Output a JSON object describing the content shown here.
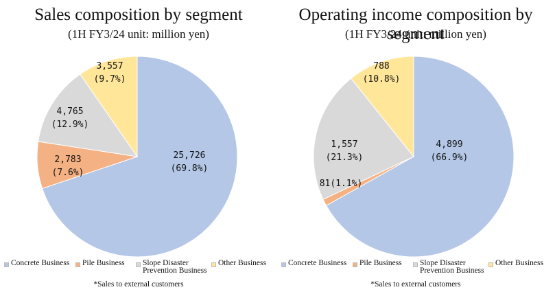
{
  "chart_data": [
    {
      "type": "pie",
      "title": "Sales composition by segment",
      "subtitle": "(1H FY3/24 unit: million yen)",
      "slices": [
        {
          "name": "Concrete Business",
          "value": 25726,
          "value_label": "25,726",
          "percent_label": "(69.8%)",
          "color": "#b4c7e7"
        },
        {
          "name": "Pile Business",
          "value": 2783,
          "value_label": "2,783",
          "percent_label": "(7.6%)",
          "color": "#f4b183"
        },
        {
          "name": "Slope Disaster\nPrevention Business",
          "value": 4765,
          "value_label": "4,765",
          "percent_label": "(12.9%)",
          "color": "#d9d9d9"
        },
        {
          "name": "Other Business",
          "value": 3557,
          "value_label": "3,557",
          "percent_label": "(9.7%)",
          "color": "#ffe699"
        }
      ],
      "legend_placement": "bottom",
      "note": "*Sales to external customers"
    },
    {
      "type": "pie",
      "title": "Operating income composition by segment",
      "subtitle": "(1H FY3/24 unit: million yen)",
      "slices": [
        {
          "name": "Concrete Business",
          "value": 4899,
          "value_label": "4,899",
          "percent_label": "(66.9%)",
          "color": "#b4c7e7"
        },
        {
          "name": "Pile Business",
          "value": 81,
          "value_label": "81",
          "percent_label": "(1.1%)",
          "color": "#f4b183"
        },
        {
          "name": "Slope Disaster\nPrevention Business",
          "value": 1557,
          "value_label": "1,557",
          "percent_label": "(21.3%)",
          "color": "#d9d9d9"
        },
        {
          "name": "Other Business",
          "value": 788,
          "value_label": "788",
          "percent_label": "(10.8%)",
          "color": "#ffe699"
        }
      ],
      "legend_placement": "bottom",
      "note": "*Sales to external customers"
    }
  ]
}
